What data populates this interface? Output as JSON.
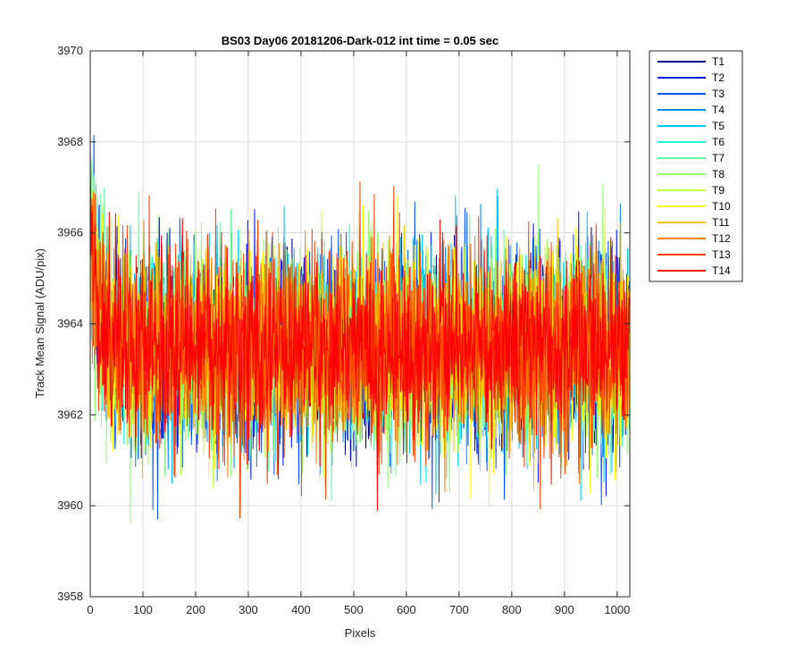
{
  "chart_data": {
    "type": "line",
    "title": "BS03 Day06 20181206-Dark-012 int time = 0.05 sec",
    "xlabel": "Pixels",
    "ylabel": "Track Mean Signal (ADU/pix)",
    "xlim": [
      0,
      1024
    ],
    "ylim": [
      3958,
      3970
    ],
    "xticks": [
      0,
      100,
      200,
      300,
      400,
      500,
      600,
      700,
      800,
      900,
      1000
    ],
    "yticks": [
      3958,
      3960,
      3962,
      3964,
      3966,
      3968,
      3970
    ],
    "grid": true,
    "legend_position": "outside-top-right",
    "n_pixels": 1024,
    "series_summary": {
      "mean": 3963.5,
      "typical_range": [
        3960,
        3967
      ],
      "start_value": 3966,
      "note_levels": "all 14 tracks are dark-frame noise around ~3963.5 ADU/pix with slightly elevated values near pixel 0"
    },
    "series": [
      {
        "name": "T1",
        "color": "#00008f"
      },
      {
        "name": "T2",
        "color": "#0010ff"
      },
      {
        "name": "T3",
        "color": "#0050ff"
      },
      {
        "name": "T4",
        "color": "#0090ff"
      },
      {
        "name": "T5",
        "color": "#00c8ff"
      },
      {
        "name": "T6",
        "color": "#20ffdf"
      },
      {
        "name": "T7",
        "color": "#60ffa0"
      },
      {
        "name": "T8",
        "color": "#90ff70"
      },
      {
        "name": "T9",
        "color": "#c0ff40"
      },
      {
        "name": "T10",
        "color": "#ffff00"
      },
      {
        "name": "T11",
        "color": "#ffc000"
      },
      {
        "name": "T12",
        "color": "#ff8000"
      },
      {
        "name": "T13",
        "color": "#ff4000"
      },
      {
        "name": "T14",
        "color": "#ff0000"
      }
    ]
  }
}
